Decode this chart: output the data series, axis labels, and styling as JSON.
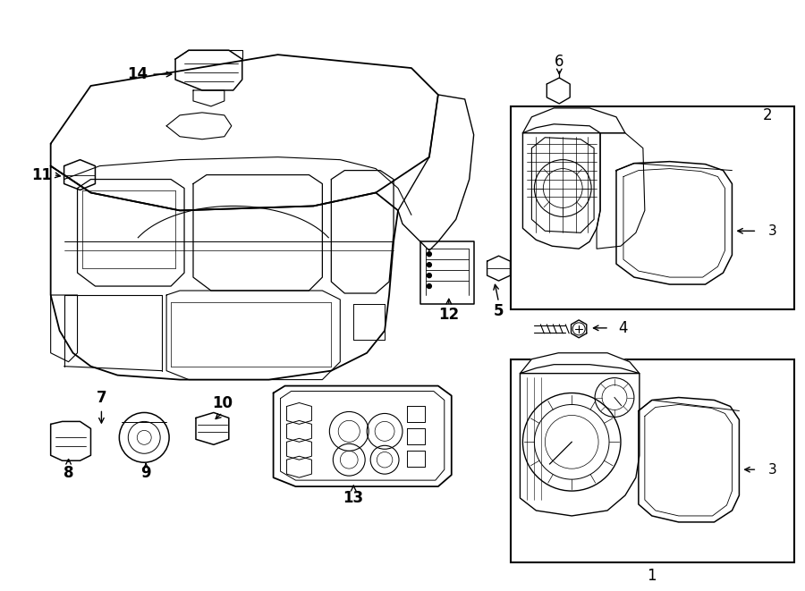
{
  "background_color": "#ffffff",
  "line_color": "#000000",
  "lw": 1.0,
  "fig_width": 9.0,
  "fig_height": 6.61,
  "dpi": 100
}
